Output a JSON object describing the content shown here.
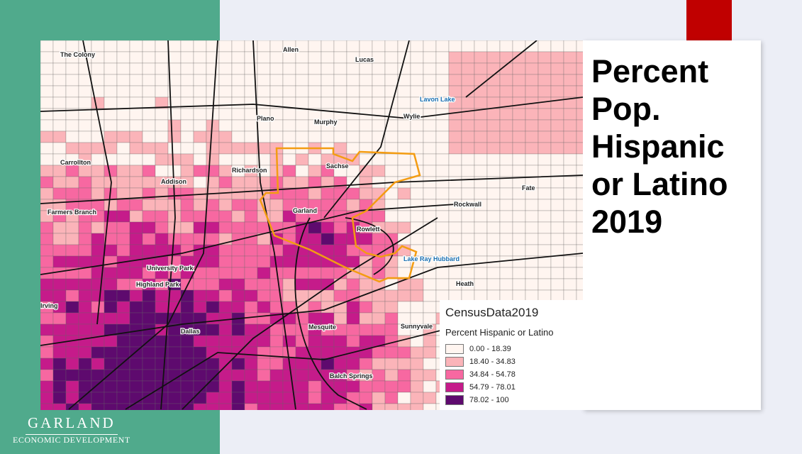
{
  "slide": {
    "title": "Percent Pop. Hispanic or Latino 2019"
  },
  "logo": {
    "name": "GARLAND",
    "tagline": "ECONOMIC DEVELOPMENT"
  },
  "map": {
    "places": [
      "The Colony",
      "Allen",
      "Lucas",
      "Lavon Lake",
      "Plano",
      "Murphy",
      "Wylie",
      "Carrollton",
      "Richardson",
      "Sachse",
      "Addison",
      "Fate",
      "Rockwall",
      "Garland",
      "Farmers Branch",
      "Rowlett",
      "Lake Ray Hubbard",
      "University Park",
      "Highland Park",
      "Heath",
      "Irving",
      "Dallas",
      "Mesquite",
      "Sunnyvale",
      "Balch Springs"
    ]
  },
  "legend": {
    "title": "CensusData2019",
    "subtitle": "Percent Hispanic or Latino",
    "items": [
      {
        "label": "0.00 - 18.39",
        "color": "#fff5f0"
      },
      {
        "label": "18.40 - 34.83",
        "color": "#fbb4b9"
      },
      {
        "label": "34.84 - 54.78",
        "color": "#f768a1"
      },
      {
        "label": "54.79 - 78.01",
        "color": "#c51b8a"
      },
      {
        "label": "78.02 - 100",
        "color": "#5e0a6e"
      }
    ]
  }
}
